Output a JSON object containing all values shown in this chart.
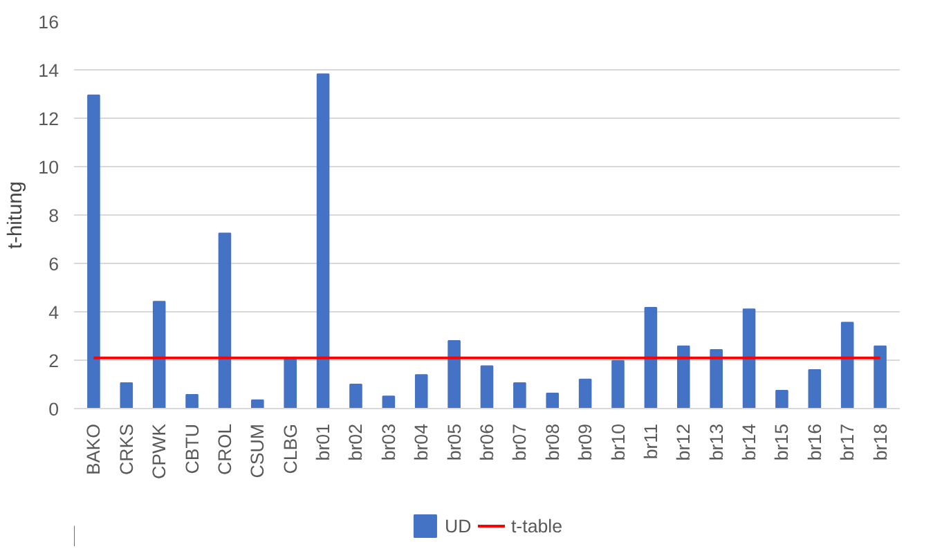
{
  "chart_data": {
    "type": "bar",
    "ylabel": "t-hitung",
    "categories": [
      "BAKO",
      "CRKS",
      "CPWK",
      "CBTU",
      "CROL",
      "CSUM",
      "CLBG",
      "br01",
      "br02",
      "br03",
      "br04",
      "br05",
      "br06",
      "br07",
      "br08",
      "br09",
      "br10",
      "br11",
      "br12",
      "br13",
      "br14",
      "br15",
      "br16",
      "br17",
      "br18"
    ],
    "series": [
      {
        "name": "UD",
        "color": "#4472c4",
        "values": [
          12.95,
          1.06,
          4.42,
          0.57,
          7.24,
          0.35,
          2.09,
          13.82,
          1.0,
          0.51,
          1.39,
          2.8,
          1.76,
          1.06,
          0.63,
          1.21,
          1.98,
          4.17,
          2.58,
          2.43,
          4.11,
          0.74,
          1.6,
          3.56,
          2.58
        ]
      },
      {
        "name": "t-table",
        "type": "line",
        "color": "#ff0000",
        "values": [
          2.09,
          2.09,
          2.09,
          2.09,
          2.09,
          2.09,
          2.09,
          2.09,
          2.09,
          2.09,
          2.09,
          2.09,
          2.09,
          2.09,
          2.09,
          2.09,
          2.09,
          2.09,
          2.09,
          2.09,
          2.09,
          2.09,
          2.09,
          2.09,
          2.09
        ]
      }
    ],
    "ylim": [
      0,
      16
    ],
    "yticks": [
      0,
      2,
      4,
      6,
      8,
      10,
      12,
      14,
      16
    ],
    "grid": "y",
    "legend": "bottom",
    "marker": "none",
    "line_style": "solid"
  }
}
